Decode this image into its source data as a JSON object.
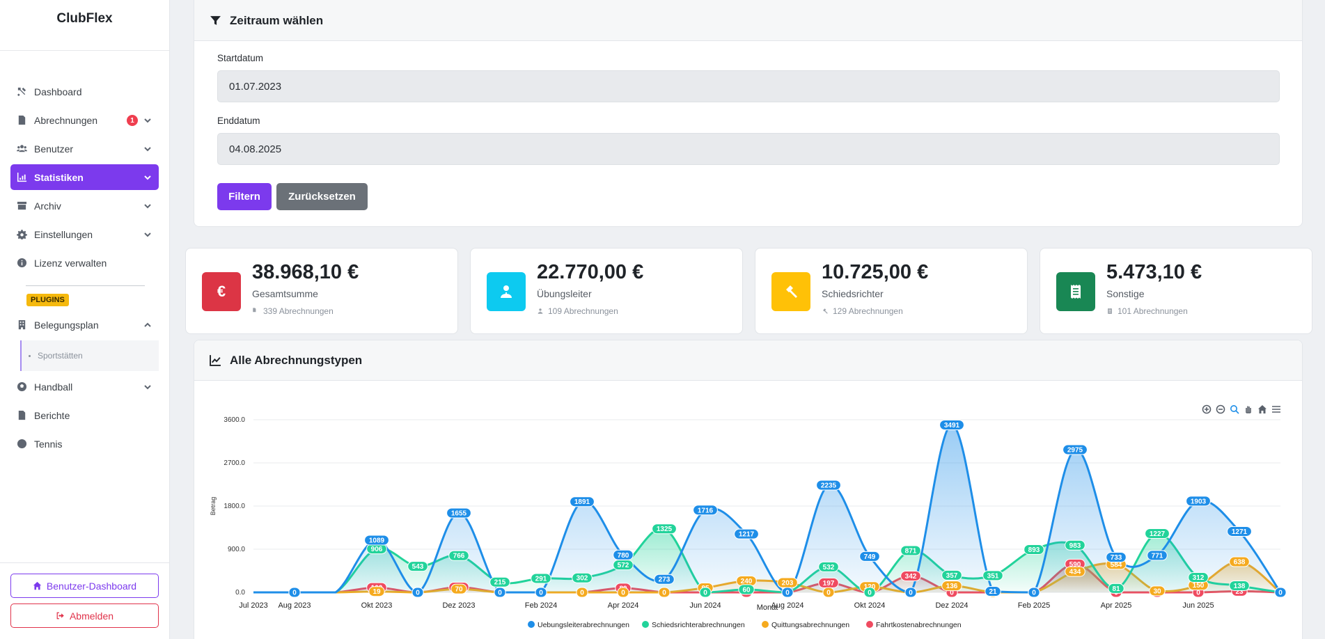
{
  "brand": "ClubFlex",
  "nav": [
    {
      "key": "dashboard",
      "label": "Dashboard",
      "icon": "tools-icon",
      "chev": ""
    },
    {
      "key": "abrechnungen",
      "label": "Abrechnungen",
      "icon": "document-icon",
      "chev": "down",
      "badge": "1"
    },
    {
      "key": "benutzer",
      "label": "Benutzer",
      "icon": "users-icon",
      "chev": "down"
    },
    {
      "key": "statistiken",
      "label": "Statistiken",
      "icon": "chart-icon",
      "chev": "down",
      "active": true
    },
    {
      "key": "archiv",
      "label": "Archiv",
      "icon": "archive-icon",
      "chev": "down"
    },
    {
      "key": "einstellungen",
      "label": "Einstellungen",
      "icon": "gear-icon",
      "chev": "down"
    },
    {
      "key": "lizenz",
      "label": "Lizenz verwalten",
      "icon": "info-icon",
      "chev": ""
    }
  ],
  "plugins_label": "PLUGINS",
  "plugin_nav": [
    {
      "key": "belegungsplan",
      "label": "Belegungsplan",
      "icon": "building-icon",
      "chev": "up"
    }
  ],
  "plugin_sub": "Sportstätten",
  "plugin_nav2": [
    {
      "key": "handball",
      "label": "Handball",
      "icon": "ball-icon",
      "chev": "down"
    },
    {
      "key": "berichte",
      "label": "Berichte",
      "icon": "file-icon",
      "chev": ""
    },
    {
      "key": "tennis",
      "label": "Tennis",
      "icon": "tennis-icon",
      "chev": ""
    }
  ],
  "bottom": {
    "dashboard_button": "Benutzer-Dashboard",
    "logout_button": "Abmelden"
  },
  "filter": {
    "title": "Zeitraum wählen",
    "start_label": "Startdatum",
    "start_value": "01.07.2023",
    "end_label": "Enddatum",
    "end_value": "04.08.2025",
    "filter_button": "Filtern",
    "reset_button": "Zurücksetzen"
  },
  "stats": [
    {
      "value": "38.968,10 €",
      "label": "Gesamtsumme",
      "count": "339 Abrechnungen",
      "color": "#dc3545",
      "icon": "euro-icon"
    },
    {
      "value": "22.770,00 €",
      "label": "Übungsleiter",
      "count": "109 Abrechnungen",
      "color": "#0dcaf0",
      "icon": "trainer-icon"
    },
    {
      "value": "10.725,00 €",
      "label": "Schiedsrichter",
      "count": "129 Abrechnungen",
      "color": "#ffc107",
      "icon": "gavel-icon"
    },
    {
      "value": "5.473,10 €",
      "label": "Sonstige",
      "count": "101 Abrechnungen",
      "color": "#198754",
      "icon": "receipt-icon"
    }
  ],
  "chart_title": "Alle Abrechnungstypen",
  "chart_data": {
    "type": "area",
    "xlabel": "Monat",
    "ylabel": "Betrag",
    "ylim": [
      0,
      3600
    ],
    "yticks": [
      "0.0",
      "900.0",
      "1800.0",
      "2700.0",
      "3600.0"
    ],
    "tick_labels": [
      "Jul 2023",
      "Aug 2023",
      "Okt 2023",
      "Dez 2023",
      "Feb 2024",
      "Apr 2024",
      "Jun 2024",
      "Aug 2024",
      "Okt 2024",
      "Dez 2024",
      "Feb 2025",
      "Apr 2025",
      "Jun 2025"
    ],
    "tick_indices": [
      0,
      1,
      3,
      5,
      7,
      9,
      11,
      13,
      15,
      17,
      19,
      21,
      23
    ],
    "x": [
      "Jul 2023",
      "Aug 2023",
      "Sep 2023",
      "Okt 2023",
      "Nov 2023",
      "Dez 2023",
      "Jan 2024",
      "Feb 2024",
      "Mär 2024",
      "Apr 2024",
      "Mai 2024",
      "Jun 2024",
      "Jul 2024",
      "Aug 2024",
      "Sep 2024",
      "Okt 2024",
      "Nov 2024",
      "Dez 2024",
      "Jan 2025",
      "Feb 2025",
      "Mär 2025",
      "Apr 2025",
      "Mai 2025",
      "Jun 2025",
      "Jul 2025",
      "Aug 2025"
    ],
    "legend_position": "bottom",
    "series": [
      {
        "name": "Uebungsleiterabrechnungen",
        "color": "#1e8ee8",
        "values": [
          0,
          0,
          0,
          1089,
          0,
          1655,
          0,
          0,
          1891,
          780,
          273,
          1716,
          1217,
          0,
          2235,
          749,
          0,
          3491,
          21,
          0,
          2975,
          733,
          771,
          1903,
          1271,
          0
        ]
      },
      {
        "name": "Schiedsrichterabrechnungen",
        "color": "#22d39a",
        "values": [
          0,
          0,
          0,
          906,
          543,
          766,
          215,
          291,
          302,
          572,
          1325,
          0,
          60,
          0,
          532,
          0,
          871,
          357,
          351,
          893,
          983,
          81,
          1227,
          312,
          138,
          0
        ]
      },
      {
        "name": "Quittungsabrechnungen",
        "color": "#f5aa1f",
        "values": [
          0,
          0,
          0,
          19,
          0,
          70,
          0,
          0,
          0,
          0,
          0,
          95,
          240,
          203,
          0,
          120,
          0,
          136,
          0,
          0,
          434,
          584,
          30,
          150,
          638,
          0
        ]
      },
      {
        "name": "Fahrtkostenabrechnungen",
        "color": "#ef4b60",
        "values": [
          0,
          0,
          0,
          100,
          0,
          109,
          0,
          0,
          0,
          89,
          0,
          0,
          0,
          0,
          197,
          0,
          342,
          0,
          0,
          0,
          590,
          0,
          0,
          0,
          23,
          0
        ]
      }
    ]
  }
}
